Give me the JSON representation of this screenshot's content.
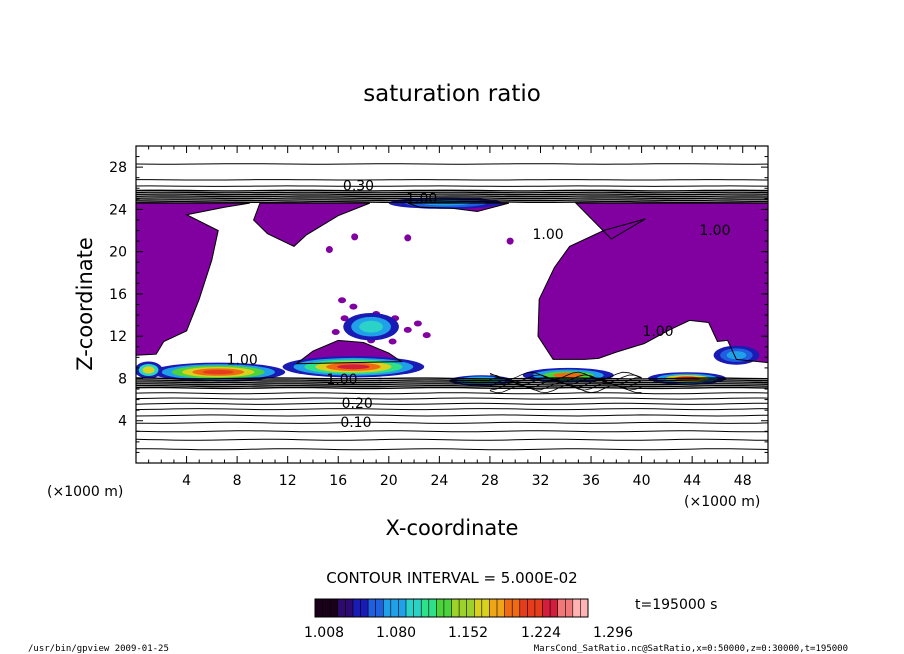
{
  "chart_data": {
    "type": "heatmap",
    "title": "saturation ratio",
    "xlabel": "X-coordinate",
    "ylabel": "Z-coordinate",
    "x_unit_left": "(×1000 m)",
    "x_unit_right": "(×1000 m)",
    "xlim": [
      0,
      50
    ],
    "ylim": [
      0,
      30
    ],
    "xticks": [
      4,
      8,
      12,
      16,
      20,
      24,
      28,
      32,
      36,
      40,
      44,
      48
    ],
    "yticks": [
      4,
      8,
      12,
      16,
      20,
      24,
      28
    ],
    "contour_interval_text": "CONTOUR INTERVAL = 5.000E-02",
    "time_text": "t=195000 s",
    "colorbar": {
      "labels": [
        "1.008",
        "1.080",
        "1.152",
        "1.224",
        "1.296"
      ],
      "colors": [
        "#1a001a",
        "#2c0a6e",
        "#1a1ab4",
        "#1f5fe0",
        "#1fa0e8",
        "#2ad2c8",
        "#2ee08a",
        "#4cd23c",
        "#9cd22a",
        "#d8d21e",
        "#f0a418",
        "#f06a14",
        "#e63c1e",
        "#d21e3c",
        "#f07878",
        "#ffb4b4"
      ]
    },
    "contour_labels": [
      {
        "text": "0.30",
        "x": 17.6,
        "y": 25.8
      },
      {
        "text": "1.00",
        "x": 22.6,
        "y": 24.6
      },
      {
        "text": "1.00",
        "x": 32.6,
        "y": 21.2
      },
      {
        "text": "1.00",
        "x": 45.8,
        "y": 21.6
      },
      {
        "text": "1.00",
        "x": 41.3,
        "y": 12.0
      },
      {
        "text": "1.00",
        "x": 8.4,
        "y": 9.3
      },
      {
        "text": "1.00",
        "x": 16.3,
        "y": 7.5
      },
      {
        "text": "0.20",
        "x": 17.5,
        "y": 5.2
      },
      {
        "text": "0.10",
        "x": 17.4,
        "y": 3.4
      }
    ],
    "region_fill": "#8000a0"
  },
  "footer": {
    "left": "/usr/bin/gpview   2009-01-25",
    "right": "MarsCond_SatRatio.nc@SatRatio,x=0:50000,z=0:30000,t=195000"
  }
}
